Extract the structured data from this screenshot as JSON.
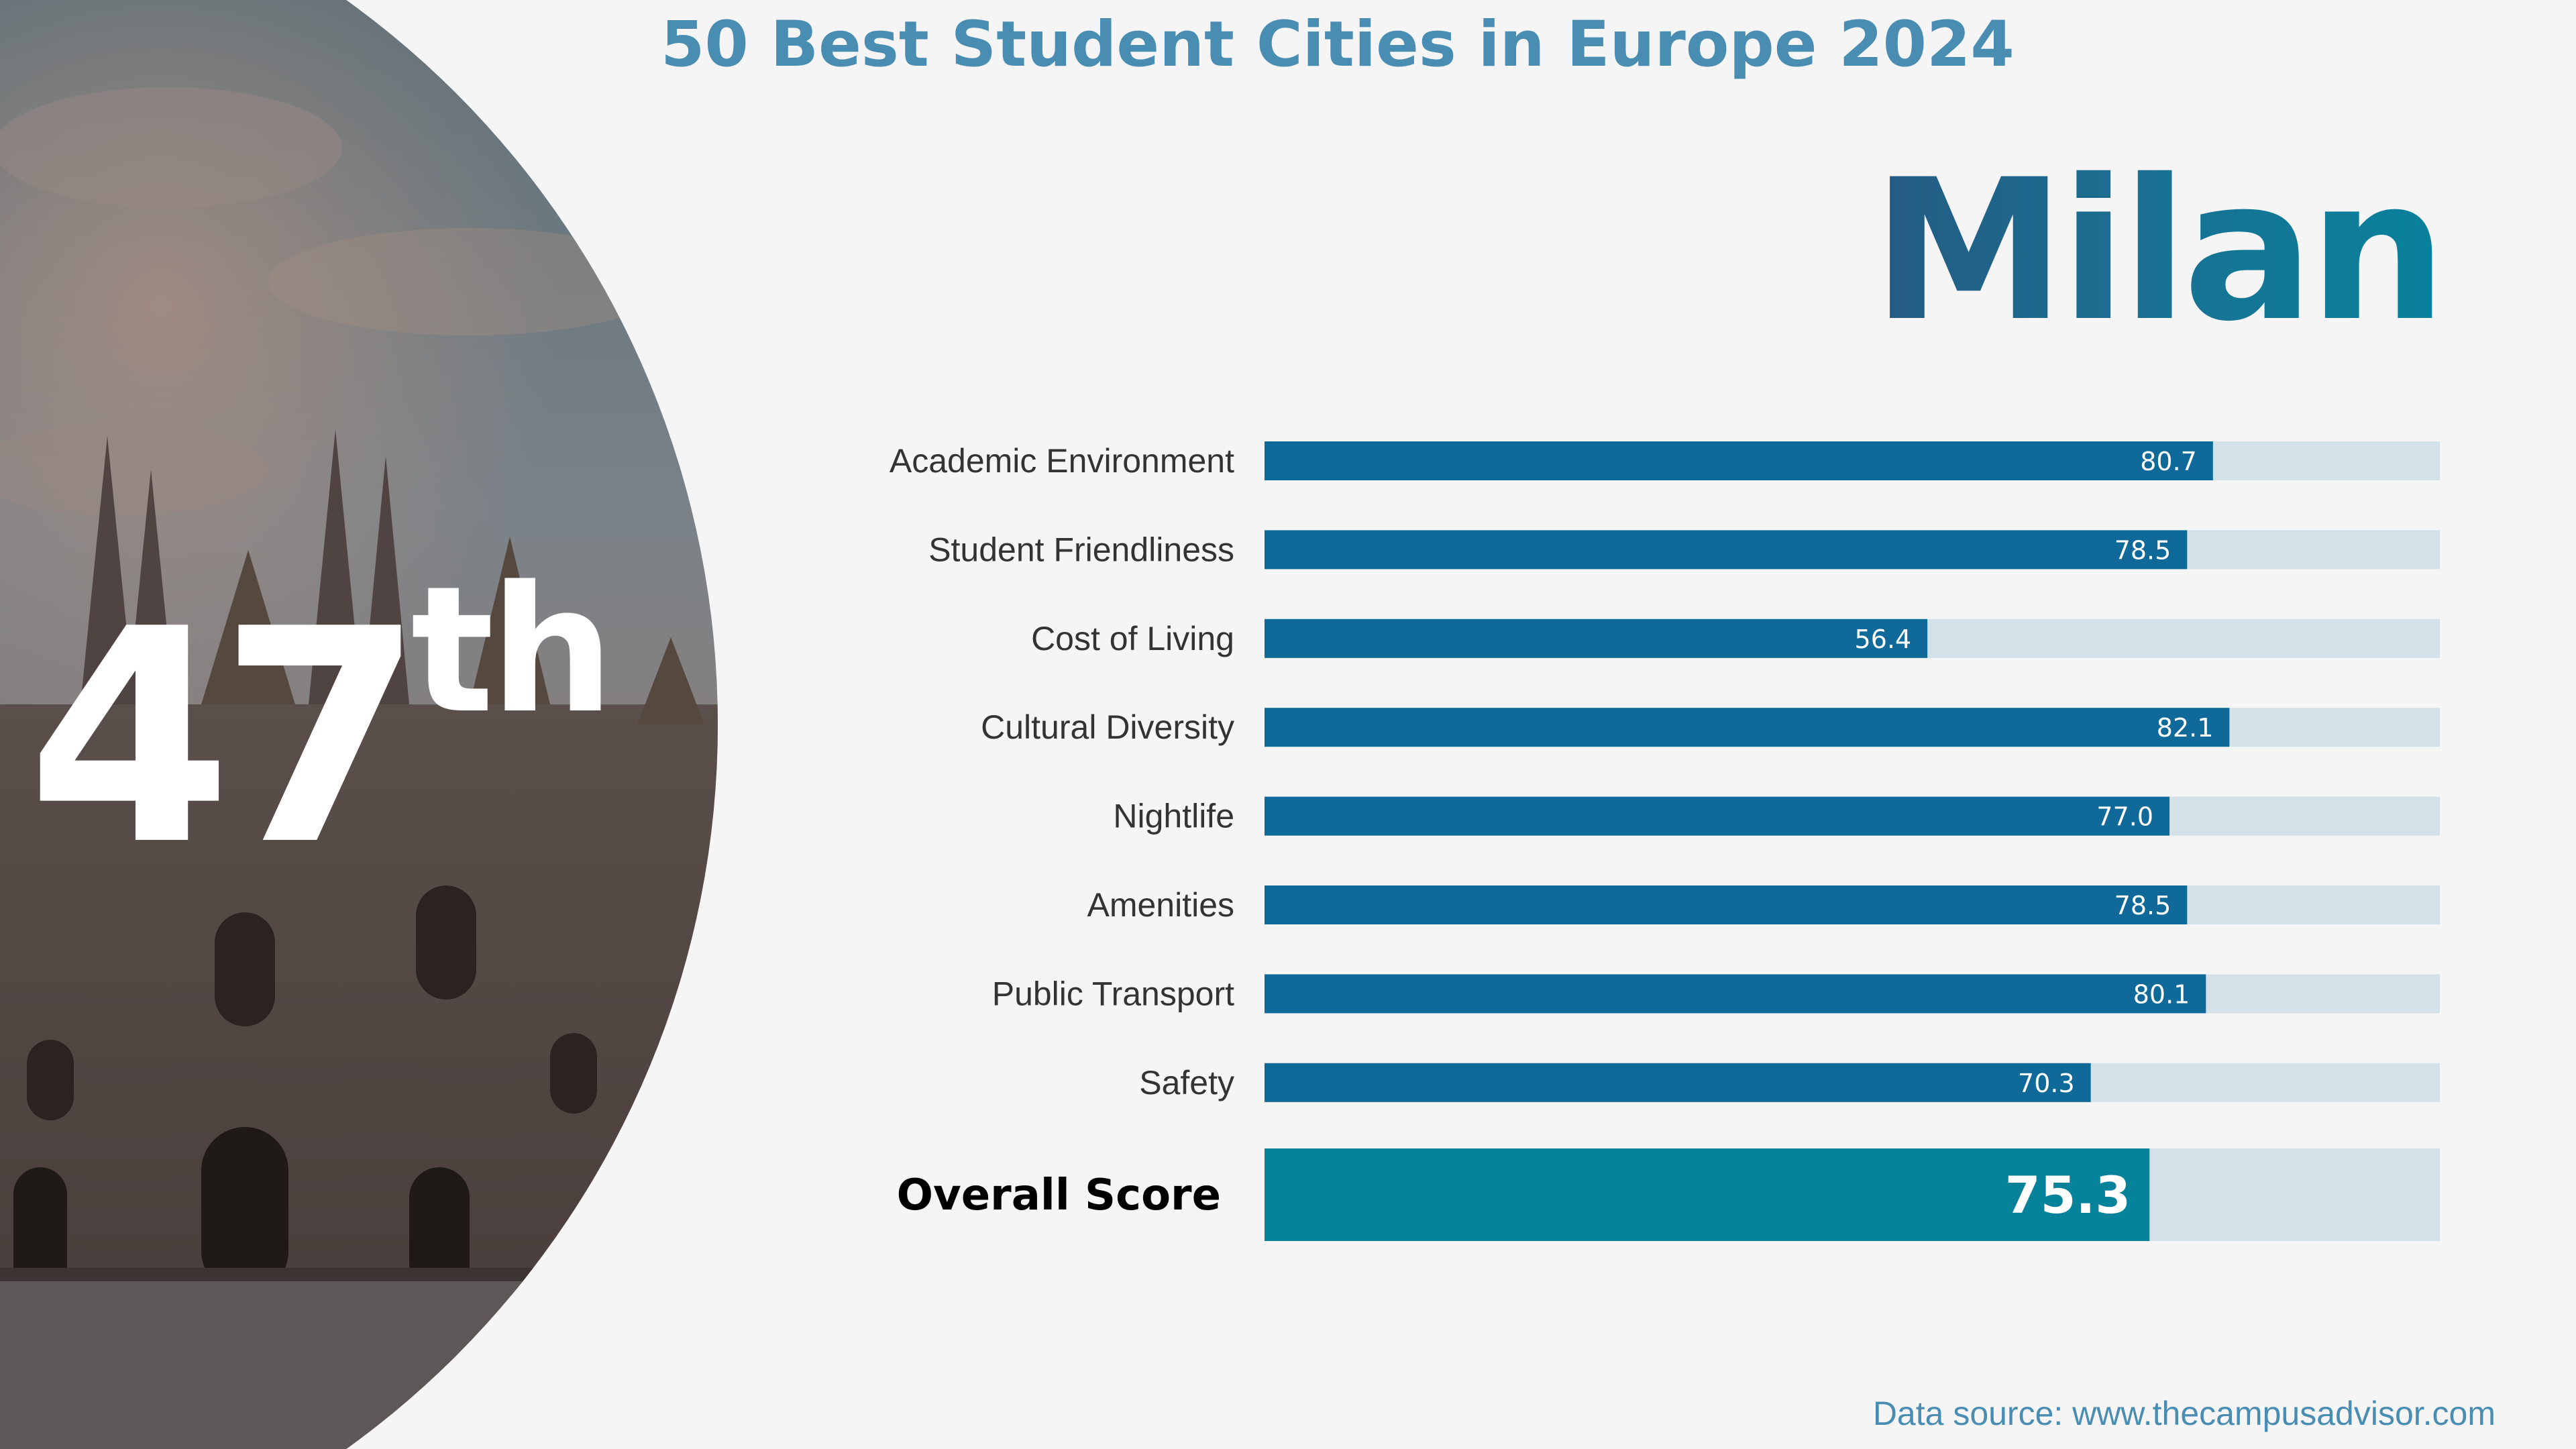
{
  "header": {
    "title": "50 Best Student Cities in Europe 2024"
  },
  "city": {
    "name": "Milan"
  },
  "rank": {
    "number": "47",
    "suffix": "th"
  },
  "colors": {
    "bar": "#0f6a99",
    "bar_track": "#d5e1e9",
    "overall_bar": "#06829a",
    "title": "#4a8db3"
  },
  "photo": {
    "icon": "cathedral-photo"
  },
  "chart_data": {
    "type": "bar",
    "orientation": "horizontal",
    "xlim": [
      0,
      100
    ],
    "categories": [
      "Academic Environment",
      "Student Friendliness",
      "Cost of Living",
      "Cultural Diversity",
      "Nightlife",
      "Amenities",
      "Public Transport",
      "Safety"
    ],
    "values": [
      80.7,
      78.5,
      56.4,
      82.1,
      77.0,
      78.5,
      80.1,
      70.3
    ],
    "value_labels": [
      "80.7",
      "78.5",
      "56.4",
      "82.1",
      "77.0",
      "78.5",
      "80.1",
      "70.3"
    ],
    "overall": {
      "label": "Overall Score",
      "value": 75.3,
      "value_label": "75.3"
    }
  },
  "footer": {
    "source": "Data source: www.thecampusadvisor.com"
  }
}
